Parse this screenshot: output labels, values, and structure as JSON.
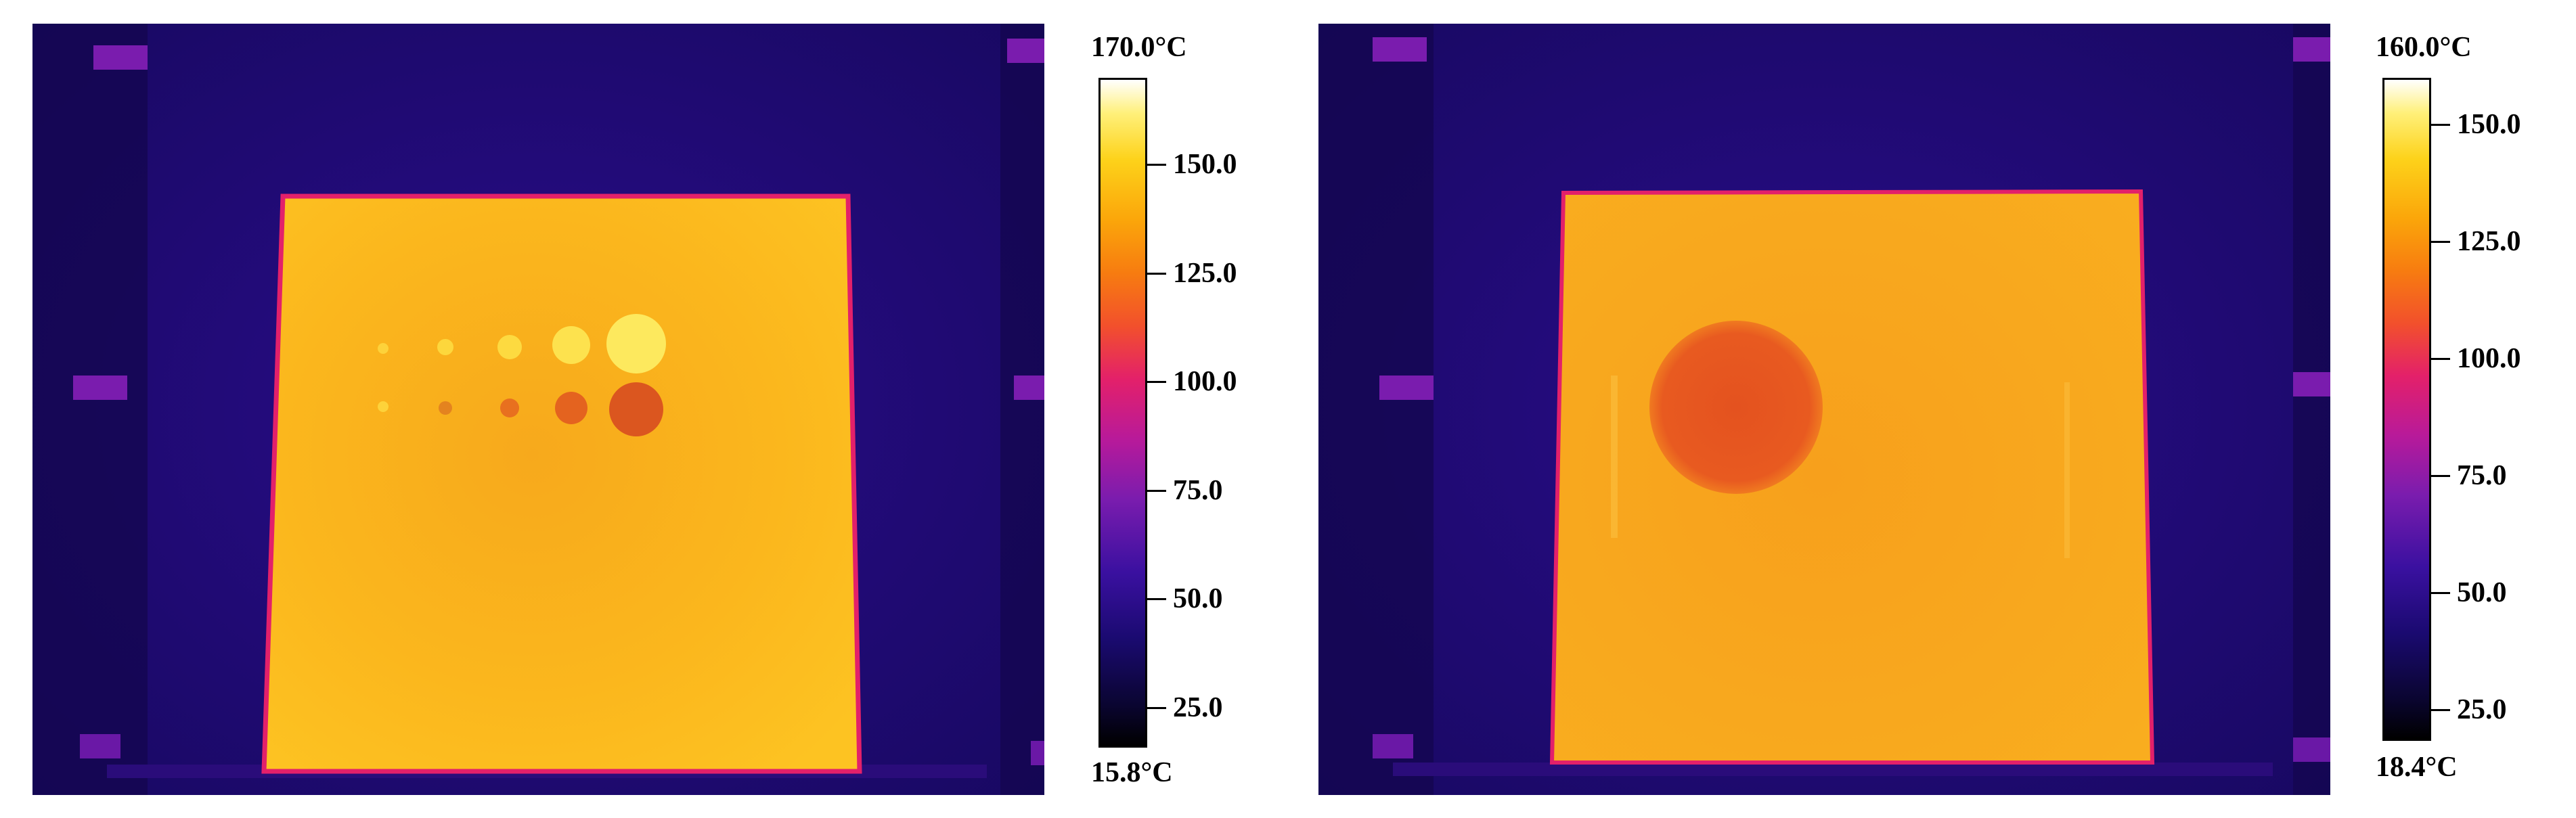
{
  "panels": [
    {
      "scale_max": "170.0°C",
      "scale_min": "15.8°C",
      "ticks": [
        {
          "label": "150.0",
          "value": 150.0
        },
        {
          "label": "125.0",
          "value": 125.0
        },
        {
          "label": "100.0",
          "value": 100.0
        },
        {
          "label": "75.0",
          "value": 75.0
        },
        {
          "label": "50.0",
          "value": 50.0
        },
        {
          "label": "25.0",
          "value": 25.0
        }
      ],
      "range": [
        15.8,
        170.0
      ]
    },
    {
      "scale_max": "160.0°C",
      "scale_min": "18.4°C",
      "ticks": [
        {
          "label": "150.0",
          "value": 150.0
        },
        {
          "label": "125.0",
          "value": 125.0
        },
        {
          "label": "100.0",
          "value": 100.0
        },
        {
          "label": "75.0",
          "value": 75.0
        },
        {
          "label": "50.0",
          "value": 50.0
        },
        {
          "label": "25.0",
          "value": 25.0
        }
      ],
      "range": [
        18.4,
        160.0
      ]
    }
  ],
  "colors": {
    "background": "#1c0a6e",
    "plate_hot": "#fbc21a",
    "plate_warm": "#f6a31c",
    "defect": "#e4531f",
    "frame_edge": "#e3206a"
  }
}
